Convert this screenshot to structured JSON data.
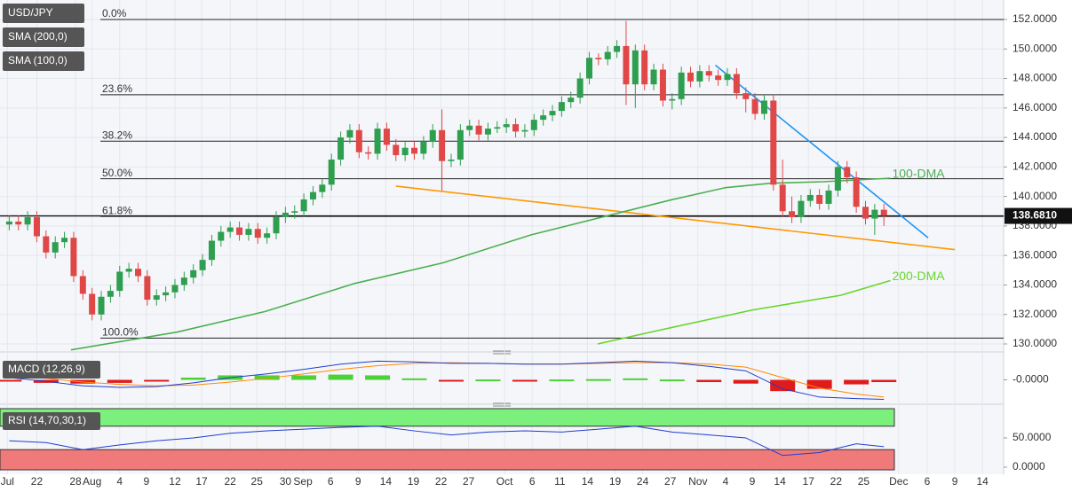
{
  "chart_data": {
    "type": "candlestick",
    "legend": [
      "USD/JPY",
      "SMA (200,0)",
      "SMA (100,0)"
    ],
    "up_color": "#2e9e4f",
    "down_color": "#e04848",
    "candles": [
      [
        138.1,
        138.7,
        137.7,
        138.3
      ],
      [
        138.3,
        138.7,
        137.7,
        138.1
      ],
      [
        138.1,
        139.0,
        137.7,
        138.6
      ],
      [
        138.6,
        139.0,
        136.9,
        137.3
      ],
      [
        137.3,
        137.7,
        135.8,
        136.2
      ],
      [
        136.2,
        137.3,
        135.8,
        136.9
      ],
      [
        136.9,
        137.6,
        136.5,
        137.2
      ],
      [
        137.2,
        137.6,
        134.2,
        134.6
      ],
      [
        134.6,
        135.0,
        133.0,
        133.4
      ],
      [
        133.4,
        133.8,
        131.6,
        132.0
      ],
      [
        132.0,
        133.6,
        131.6,
        133.2
      ],
      [
        133.2,
        134.0,
        132.8,
        133.6
      ],
      [
        133.6,
        135.3,
        133.2,
        134.9
      ],
      [
        134.9,
        135.5,
        134.5,
        135.1
      ],
      [
        135.1,
        135.5,
        134.2,
        134.6
      ],
      [
        134.6,
        135.0,
        132.6,
        133.0
      ],
      [
        133.0,
        133.7,
        132.6,
        133.3
      ],
      [
        133.3,
        133.9,
        132.9,
        133.5
      ],
      [
        133.5,
        134.4,
        133.1,
        134.0
      ],
      [
        134.0,
        134.9,
        133.6,
        134.5
      ],
      [
        134.5,
        135.4,
        134.1,
        135.0
      ],
      [
        135.0,
        136.1,
        134.6,
        135.7
      ],
      [
        135.7,
        137.4,
        135.3,
        137.0
      ],
      [
        137.0,
        138.0,
        136.6,
        137.6
      ],
      [
        137.6,
        138.3,
        137.2,
        137.9
      ],
      [
        137.9,
        138.3,
        137.0,
        137.4
      ],
      [
        137.4,
        138.2,
        137.0,
        137.8
      ],
      [
        137.8,
        138.2,
        136.8,
        137.2
      ],
      [
        137.2,
        137.9,
        136.8,
        137.5
      ],
      [
        137.5,
        139.0,
        137.1,
        138.6
      ],
      [
        138.6,
        139.3,
        138.2,
        138.9
      ],
      [
        138.9,
        139.4,
        138.5,
        139.0
      ],
      [
        139.0,
        140.2,
        138.6,
        139.8
      ],
      [
        139.8,
        140.7,
        139.4,
        140.3
      ],
      [
        140.3,
        141.2,
        139.9,
        140.8
      ],
      [
        140.8,
        142.9,
        140.4,
        142.5
      ],
      [
        142.5,
        144.4,
        142.1,
        144.0
      ],
      [
        144.0,
        144.9,
        143.6,
        144.5
      ],
      [
        144.5,
        144.9,
        142.6,
        143.0
      ],
      [
        143.0,
        143.4,
        142.5,
        142.9
      ],
      [
        142.9,
        145.0,
        142.5,
        144.6
      ],
      [
        144.6,
        145.0,
        143.1,
        143.5
      ],
      [
        143.5,
        143.9,
        142.4,
        142.8
      ],
      [
        142.8,
        143.7,
        142.4,
        143.3
      ],
      [
        143.3,
        143.7,
        142.5,
        142.9
      ],
      [
        142.9,
        144.1,
        142.5,
        143.7
      ],
      [
        143.7,
        144.9,
        143.3,
        144.5
      ],
      [
        144.5,
        145.9,
        140.4,
        142.4
      ],
      [
        142.4,
        142.9,
        142.0,
        142.5
      ],
      [
        142.5,
        144.9,
        142.1,
        144.5
      ],
      [
        144.5,
        145.2,
        144.1,
        144.8
      ],
      [
        144.8,
        145.2,
        143.8,
        144.2
      ],
      [
        144.2,
        145.0,
        143.8,
        144.6
      ],
      [
        144.6,
        145.1,
        144.3,
        144.7
      ],
      [
        144.7,
        145.3,
        144.3,
        144.9
      ],
      [
        144.9,
        145.3,
        144.0,
        144.4
      ],
      [
        144.4,
        144.9,
        144.0,
        144.5
      ],
      [
        144.5,
        145.6,
        144.1,
        145.2
      ],
      [
        145.2,
        145.9,
        144.8,
        145.5
      ],
      [
        145.5,
        146.2,
        145.1,
        145.8
      ],
      [
        145.8,
        146.8,
        145.4,
        146.4
      ],
      [
        146.4,
        147.1,
        146.0,
        146.7
      ],
      [
        146.7,
        148.4,
        146.3,
        148.0
      ],
      [
        148.0,
        149.8,
        147.6,
        149.4
      ],
      [
        149.4,
        149.7,
        148.9,
        149.3
      ],
      [
        149.3,
        150.2,
        148.9,
        149.8
      ],
      [
        149.8,
        150.6,
        149.4,
        150.2
      ],
      [
        150.2,
        151.9,
        146.2,
        147.6
      ],
      [
        147.6,
        150.3,
        146.0,
        149.9
      ],
      [
        149.9,
        150.3,
        147.2,
        147.6
      ],
      [
        147.6,
        149.0,
        147.2,
        148.6
      ],
      [
        148.6,
        149.0,
        146.1,
        146.5
      ],
      [
        146.5,
        147.0,
        145.9,
        146.6
      ],
      [
        146.6,
        148.8,
        146.2,
        148.4
      ],
      [
        148.4,
        148.8,
        147.4,
        147.8
      ],
      [
        147.8,
        148.9,
        147.4,
        148.5
      ],
      [
        148.5,
        148.9,
        147.8,
        148.2
      ],
      [
        148.2,
        148.6,
        147.5,
        147.9
      ],
      [
        147.9,
        148.7,
        147.5,
        148.3
      ],
      [
        148.3,
        148.7,
        146.6,
        147.0
      ],
      [
        147.0,
        147.4,
        145.7,
        146.6
      ],
      [
        146.6,
        147.0,
        145.2,
        145.6
      ],
      [
        145.6,
        146.9,
        145.2,
        146.5
      ],
      [
        146.5,
        146.9,
        140.4,
        140.8
      ],
      [
        140.8,
        142.5,
        138.6,
        139.0
      ],
      [
        139.0,
        140.0,
        138.2,
        138.6
      ],
      [
        138.6,
        140.1,
        138.2,
        139.7
      ],
      [
        139.7,
        140.5,
        139.3,
        140.1
      ],
      [
        140.1,
        140.5,
        139.1,
        139.5
      ],
      [
        139.5,
        140.8,
        139.1,
        140.4
      ],
      [
        140.4,
        142.4,
        140.0,
        142.0
      ],
      [
        142.0,
        142.4,
        140.9,
        141.3
      ],
      [
        141.3,
        141.7,
        138.9,
        139.3
      ],
      [
        139.3,
        139.7,
        138.1,
        138.5
      ],
      [
        138.5,
        139.5,
        137.4,
        139.1
      ],
      [
        139.1,
        139.5,
        138.0,
        138.7
      ]
    ],
    "xlim": [
      -1,
      108
    ],
    "xticks": [
      {
        "value": -0.2,
        "label": "Jul"
      },
      {
        "value": 3.0,
        "label": "22"
      },
      {
        "value": 7.2,
        "label": "28"
      },
      {
        "value": 9.0,
        "label": "Aug"
      },
      {
        "value": 12.0,
        "label": "4"
      },
      {
        "value": 14.9,
        "label": "9"
      },
      {
        "value": 18.0,
        "label": "12"
      },
      {
        "value": 20.9,
        "label": "17"
      },
      {
        "value": 24.0,
        "label": "22"
      },
      {
        "value": 26.9,
        "label": "25"
      },
      {
        "value": 30.0,
        "label": "30"
      },
      {
        "value": 31.9,
        "label": "Sep"
      },
      {
        "value": 34.9,
        "label": "6"
      },
      {
        "value": 37.9,
        "label": "9"
      },
      {
        "value": 40.9,
        "label": "14"
      },
      {
        "value": 43.9,
        "label": "19"
      },
      {
        "value": 46.9,
        "label": "22"
      },
      {
        "value": 49.9,
        "label": "27"
      },
      {
        "value": 53.8,
        "label": "Oct"
      },
      {
        "value": 56.8,
        "label": "6"
      },
      {
        "value": 59.8,
        "label": "11"
      },
      {
        "value": 62.8,
        "label": "14"
      },
      {
        "value": 65.8,
        "label": "19"
      },
      {
        "value": 68.8,
        "label": "24"
      },
      {
        "value": 71.8,
        "label": "27"
      },
      {
        "value": 74.8,
        "label": "Nov"
      },
      {
        "value": 77.8,
        "label": "4"
      },
      {
        "value": 80.7,
        "label": "9"
      },
      {
        "value": 83.7,
        "label": "14"
      },
      {
        "value": 86.8,
        "label": "17"
      },
      {
        "value": 89.8,
        "label": "22"
      },
      {
        "value": 92.8,
        "label": "25"
      },
      {
        "value": 96.6,
        "label": "Dec"
      },
      {
        "value": 99.7,
        "label": "6"
      },
      {
        "value": 102.7,
        "label": "9"
      },
      {
        "value": 105.7,
        "label": "14"
      }
    ],
    "ylim": [
      129.58,
      153.32
    ],
    "yticks": [
      {
        "value": 130,
        "label": "130.0000"
      },
      {
        "value": 132,
        "label": "132.0000"
      },
      {
        "value": 134,
        "label": "134.0000"
      },
      {
        "value": 136,
        "label": "136.0000"
      },
      {
        "value": 138,
        "label": "138.0000"
      },
      {
        "value": 140,
        "label": "140.0000"
      },
      {
        "value": 142,
        "label": "142.0000"
      },
      {
        "value": 144,
        "label": "144.0000"
      },
      {
        "value": 146,
        "label": "146.0000"
      },
      {
        "value": 148,
        "label": "148.0000"
      },
      {
        "value": 150,
        "label": "150.0000"
      },
      {
        "value": 152,
        "label": "152.0000"
      }
    ],
    "fib": [
      {
        "label": "0.0%",
        "value": 152.0
      },
      {
        "label": "23.6%",
        "value": 146.9
      },
      {
        "label": "38.2%",
        "value": 143.75
      },
      {
        "label": "50.0%",
        "value": 141.2
      },
      {
        "label": "61.8%",
        "value": 138.65
      },
      {
        "label": "100.0%",
        "value": 130.4
      }
    ],
    "last_price": {
      "value": 138.681,
      "label": "138.6810"
    },
    "overlays": [
      {
        "name": "100-DMA",
        "color": "#4caf50",
        "x": [
          6.7,
          18.2,
          27.8,
          37.5,
          47.1,
          56.7,
          66.3,
          72.1,
          77.8,
          82.7,
          88.4,
          95.7
        ],
        "values": [
          129.6,
          130.8,
          132.2,
          134.1,
          135.5,
          137.4,
          138.9,
          139.8,
          140.6,
          140.9,
          141.0,
          141.24
        ]
      },
      {
        "name": "200-DMA",
        "color": "#66d62a",
        "x": [
          63.9,
          71.1,
          80.7,
          90.3,
          95.7
        ],
        "values": [
          130.0,
          131.0,
          132.3,
          133.3,
          134.3
        ]
      }
    ],
    "trendlines": [
      {
        "color": "#ff9800",
        "x": [
          42.0,
          102.7
        ],
        "values": [
          140.7,
          136.4
        ]
      },
      {
        "color": "#2196f3",
        "x": [
          76.7,
          99.8
        ],
        "values": [
          148.9,
          137.2
        ]
      }
    ],
    "macd": {
      "title": "MACD (12,26,9)",
      "x": [
        0,
        4,
        8,
        12,
        16,
        20,
        24,
        28,
        32,
        36,
        40,
        44,
        48,
        52,
        56,
        60,
        64,
        68,
        72,
        76,
        80,
        84,
        88,
        92,
        95
      ],
      "macd": [
        0.3,
        -0.2,
        -0.8,
        -1.0,
        -0.9,
        -0.4,
        0.3,
        0.8,
        1.4,
        2.1,
        2.5,
        2.4,
        2.2,
        2.2,
        2.1,
        2.1,
        2.3,
        2.5,
        2.3,
        1.8,
        1.2,
        -1.2,
        -2.3,
        -2.5,
        -2.6
      ],
      "signal": [
        0.4,
        0.2,
        -0.3,
        -0.6,
        -0.8,
        -0.7,
        -0.3,
        0.2,
        0.8,
        1.4,
        1.9,
        2.2,
        2.3,
        2.2,
        2.1,
        2.1,
        2.2,
        2.3,
        2.3,
        2.1,
        1.7,
        0.3,
        -1.1,
        -1.9,
        -2.3
      ],
      "hist": [
        -0.1,
        -0.4,
        -0.5,
        -0.4,
        -0.1,
        0.3,
        0.6,
        0.6,
        0.6,
        0.7,
        0.6,
        0.2,
        -0.1,
        0.05,
        -0.05,
        0.05,
        0.1,
        0.2,
        0.05,
        -0.3,
        -0.5,
        -1.5,
        -1.2,
        -0.6,
        -0.3
      ],
      "ylim": [
        -2.9,
        2.9
      ],
      "yticks": [
        {
          "value": 0,
          "label": "-0.0000"
        }
      ]
    },
    "rsi": {
      "title": "RSI (14,70,30,1)",
      "x": [
        0,
        4,
        8,
        12,
        16,
        20,
        24,
        28,
        32,
        36,
        40,
        44,
        48,
        52,
        56,
        60,
        64,
        68,
        72,
        76,
        80,
        84,
        88,
        92,
        95
      ],
      "values": [
        45,
        42,
        30,
        38,
        45,
        50,
        58,
        62,
        65,
        68,
        70,
        62,
        55,
        60,
        62,
        60,
        65,
        70,
        60,
        55,
        50,
        20,
        25,
        40,
        35
      ],
      "bands": {
        "upper": 70,
        "lower": 30
      },
      "ylim": [
        -9.1,
        104.5
      ],
      "yticks": [
        {
          "value": 0,
          "label": "0.0000"
        },
        {
          "value": 50,
          "label": "50.0000"
        }
      ]
    }
  }
}
